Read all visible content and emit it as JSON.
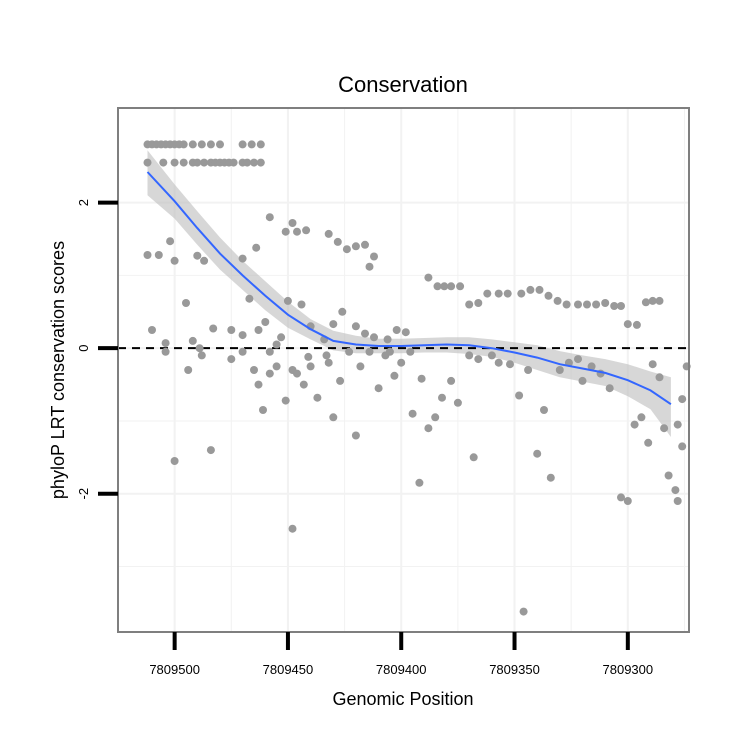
{
  "chart_data": {
    "type": "scatter",
    "title": "Conservation",
    "xlabel": "Genomic Position",
    "ylabel": "phyloP LRT conservation scores",
    "x_reversed": true,
    "xlim": [
      7809525,
      7809273
    ],
    "ylim": [
      -3.9,
      3.3
    ],
    "x_ticks": [
      7809500,
      7809450,
      7809400,
      7809350,
      7809300
    ],
    "x_tick_labels": [
      "7809500",
      "7809450",
      "7809400",
      "7809350",
      "7809300"
    ],
    "y_ticks": [
      2,
      0,
      -2
    ],
    "y_tick_labels": [
      "2",
      "0",
      "-2"
    ],
    "reference_line": {
      "y": 0,
      "style": "dashed"
    },
    "colors": {
      "points": "#999999",
      "smooth": "#3366ff",
      "ribbon": "#bdbdbd",
      "grid": "#f2f2f2",
      "border": "#7f7f7f"
    },
    "series": [
      {
        "name": "phyloP scores",
        "points": [
          [
            7809512,
            2.8
          ],
          [
            7809510,
            2.8
          ],
          [
            7809508,
            2.8
          ],
          [
            7809506,
            2.8
          ],
          [
            7809504,
            2.8
          ],
          [
            7809502,
            2.8
          ],
          [
            7809500,
            2.8
          ],
          [
            7809498,
            2.8
          ],
          [
            7809496,
            2.8
          ],
          [
            7809492,
            2.8
          ],
          [
            7809488,
            2.8
          ],
          [
            7809484,
            2.8
          ],
          [
            7809480,
            2.8
          ],
          [
            7809470,
            2.8
          ],
          [
            7809466,
            2.8
          ],
          [
            7809462,
            2.8
          ],
          [
            7809512,
            2.55
          ],
          [
            7809505,
            2.55
          ],
          [
            7809500,
            2.55
          ],
          [
            7809496,
            2.55
          ],
          [
            7809492,
            2.55
          ],
          [
            7809490,
            2.55
          ],
          [
            7809487,
            2.55
          ],
          [
            7809484,
            2.55
          ],
          [
            7809482,
            2.55
          ],
          [
            7809480,
            2.55
          ],
          [
            7809478,
            2.55
          ],
          [
            7809476,
            2.55
          ],
          [
            7809474,
            2.55
          ],
          [
            7809470,
            2.55
          ],
          [
            7809468,
            2.55
          ],
          [
            7809465,
            2.55
          ],
          [
            7809462,
            2.55
          ],
          [
            7809512,
            1.28
          ],
          [
            7809507,
            1.28
          ],
          [
            7809500,
            1.2
          ],
          [
            7809490,
            1.27
          ],
          [
            7809487,
            1.2
          ],
          [
            7809470,
            1.23
          ],
          [
            7809502,
            1.47
          ],
          [
            7809464,
            1.38
          ],
          [
            7809458,
            1.8
          ],
          [
            7809451,
            1.6
          ],
          [
            7809448,
            1.72
          ],
          [
            7809446,
            1.6
          ],
          [
            7809442,
            1.62
          ],
          [
            7809432,
            1.57
          ],
          [
            7809428,
            1.46
          ],
          [
            7809424,
            1.36
          ],
          [
            7809420,
            1.4
          ],
          [
            7809416,
            1.42
          ],
          [
            7809414,
            1.12
          ],
          [
            7809412,
            1.26
          ],
          [
            7809510,
            0.25
          ],
          [
            7809504,
            0.07
          ],
          [
            7809495,
            0.62
          ],
          [
            7809492,
            0.1
          ],
          [
            7809489,
            0.0
          ],
          [
            7809483,
            0.27
          ],
          [
            7809475,
            0.25
          ],
          [
            7809470,
            0.18
          ],
          [
            7809467,
            0.68
          ],
          [
            7809463,
            0.25
          ],
          [
            7809460,
            0.36
          ],
          [
            7809458,
            -0.05
          ],
          [
            7809455,
            0.05
          ],
          [
            7809453,
            0.15
          ],
          [
            7809450,
            0.65
          ],
          [
            7809444,
            0.6
          ],
          [
            7809440,
            0.3
          ],
          [
            7809434,
            0.12
          ],
          [
            7809430,
            0.33
          ],
          [
            7809426,
            0.5
          ],
          [
            7809420,
            0.3
          ],
          [
            7809416,
            0.2
          ],
          [
            7809412,
            0.15
          ],
          [
            7809406,
            0.12
          ],
          [
            7809402,
            0.25
          ],
          [
            7809398,
            0.22
          ],
          [
            7809388,
            0.97
          ],
          [
            7809384,
            0.85
          ],
          [
            7809381,
            0.85
          ],
          [
            7809378,
            0.85
          ],
          [
            7809374,
            0.85
          ],
          [
            7809370,
            0.6
          ],
          [
            7809366,
            0.62
          ],
          [
            7809362,
            0.75
          ],
          [
            7809357,
            0.75
          ],
          [
            7809353,
            0.75
          ],
          [
            7809347,
            0.75
          ],
          [
            7809343,
            0.8
          ],
          [
            7809339,
            0.8
          ],
          [
            7809335,
            0.72
          ],
          [
            7809331,
            0.65
          ],
          [
            7809327,
            0.6
          ],
          [
            7809322,
            0.6
          ],
          [
            7809318,
            0.6
          ],
          [
            7809314,
            0.6
          ],
          [
            7809310,
            0.62
          ],
          [
            7809306,
            0.58
          ],
          [
            7809303,
            0.58
          ],
          [
            7809300,
            0.33
          ],
          [
            7809296,
            0.32
          ],
          [
            7809292,
            0.63
          ],
          [
            7809289,
            0.65
          ],
          [
            7809286,
            0.65
          ],
          [
            7809504,
            -0.05
          ],
          [
            7809500,
            -1.55
          ],
          [
            7809494,
            -0.3
          ],
          [
            7809488,
            -0.1
          ],
          [
            7809484,
            -1.4
          ],
          [
            7809475,
            -0.15
          ],
          [
            7809470,
            -0.05
          ],
          [
            7809465,
            -0.3
          ],
          [
            7809463,
            -0.5
          ],
          [
            7809461,
            -0.85
          ],
          [
            7809458,
            -0.35
          ],
          [
            7809455,
            -0.25
          ],
          [
            7809451,
            -0.72
          ],
          [
            7809448,
            -0.3
          ],
          [
            7809446,
            -0.35
          ],
          [
            7809443,
            -0.5
          ],
          [
            7809440,
            -0.25
          ],
          [
            7809437,
            -0.68
          ],
          [
            7809433,
            -0.1
          ],
          [
            7809430,
            -0.95
          ],
          [
            7809427,
            -0.45
          ],
          [
            7809423,
            -0.05
          ],
          [
            7809420,
            -1.2
          ],
          [
            7809418,
            -0.25
          ],
          [
            7809414,
            -0.05
          ],
          [
            7809410,
            -0.55
          ],
          [
            7809407,
            -0.1
          ],
          [
            7809403,
            -0.38
          ],
          [
            7809400,
            -0.2
          ],
          [
            7809395,
            -0.9
          ],
          [
            7809391,
            -0.42
          ],
          [
            7809388,
            -1.1
          ],
          [
            7809385,
            -0.95
          ],
          [
            7809382,
            -0.68
          ],
          [
            7809378,
            -0.45
          ],
          [
            7809375,
            -0.75
          ],
          [
            7809368,
            -1.5
          ],
          [
            7809360,
            -0.1
          ],
          [
            7809357,
            -0.2
          ],
          [
            7809352,
            -0.22
          ],
          [
            7809348,
            -0.65
          ],
          [
            7809344,
            -0.3
          ],
          [
            7809340,
            -1.45
          ],
          [
            7809337,
            -0.85
          ],
          [
            7809334,
            -1.78
          ],
          [
            7809330,
            -0.3
          ],
          [
            7809326,
            -0.2
          ],
          [
            7809322,
            -0.15
          ],
          [
            7809320,
            -0.45
          ],
          [
            7809316,
            -0.25
          ],
          [
            7809312,
            -0.35
          ],
          [
            7809308,
            -0.55
          ],
          [
            7809303,
            -2.05
          ],
          [
            7809300,
            -2.1
          ],
          [
            7809297,
            -1.05
          ],
          [
            7809294,
            -0.95
          ],
          [
            7809291,
            -1.3
          ],
          [
            7809289,
            -0.22
          ],
          [
            7809286,
            -0.4
          ],
          [
            7809284,
            -1.1
          ],
          [
            7809282,
            -1.75
          ],
          [
            7809279,
            -1.95
          ],
          [
            7809276,
            -1.35
          ],
          [
            7809274,
            -0.25
          ],
          [
            7809276,
            -0.7
          ],
          [
            7809278,
            -1.05
          ],
          [
            7809448,
            -2.48
          ],
          [
            7809346,
            -3.62
          ],
          [
            7809392,
            -1.85
          ],
          [
            7809278,
            -2.1
          ],
          [
            7809441,
            -0.12
          ],
          [
            7809432,
            -0.2
          ],
          [
            7809405,
            -0.05
          ],
          [
            7809396,
            -0.05
          ],
          [
            7809370,
            -0.1
          ],
          [
            7809366,
            -0.15
          ]
        ]
      }
    ],
    "smooth_fit": {
      "method": "loess",
      "x": [
        7809512,
        7809500,
        7809490,
        7809480,
        7809470,
        7809460,
        7809450,
        7809440,
        7809430,
        7809420,
        7809410,
        7809400,
        7809390,
        7809380,
        7809370,
        7809360,
        7809350,
        7809340,
        7809330,
        7809320,
        7809310,
        7809300,
        7809290,
        7809281
      ],
      "y": [
        2.42,
        2.02,
        1.65,
        1.3,
        1.0,
        0.72,
        0.46,
        0.26,
        0.1,
        0.05,
        0.03,
        0.03,
        0.04,
        0.05,
        0.04,
        0.0,
        -0.06,
        -0.13,
        -0.22,
        -0.28,
        -0.34,
        -0.44,
        -0.58,
        -0.77
      ],
      "band_lower": [
        2.1,
        1.78,
        1.42,
        1.08,
        0.8,
        0.52,
        0.28,
        0.12,
        -0.03,
        -0.07,
        -0.07,
        -0.07,
        -0.06,
        -0.06,
        -0.08,
        -0.12,
        -0.2,
        -0.3,
        -0.4,
        -0.46,
        -0.52,
        -0.66,
        -0.84,
        -1.22
      ],
      "band_upper": [
        2.72,
        2.25,
        1.88,
        1.52,
        1.2,
        0.92,
        0.64,
        0.4,
        0.24,
        0.17,
        0.13,
        0.13,
        0.14,
        0.15,
        0.15,
        0.12,
        0.08,
        0.04,
        -0.04,
        -0.1,
        -0.15,
        -0.22,
        -0.32,
        -0.4
      ]
    }
  }
}
